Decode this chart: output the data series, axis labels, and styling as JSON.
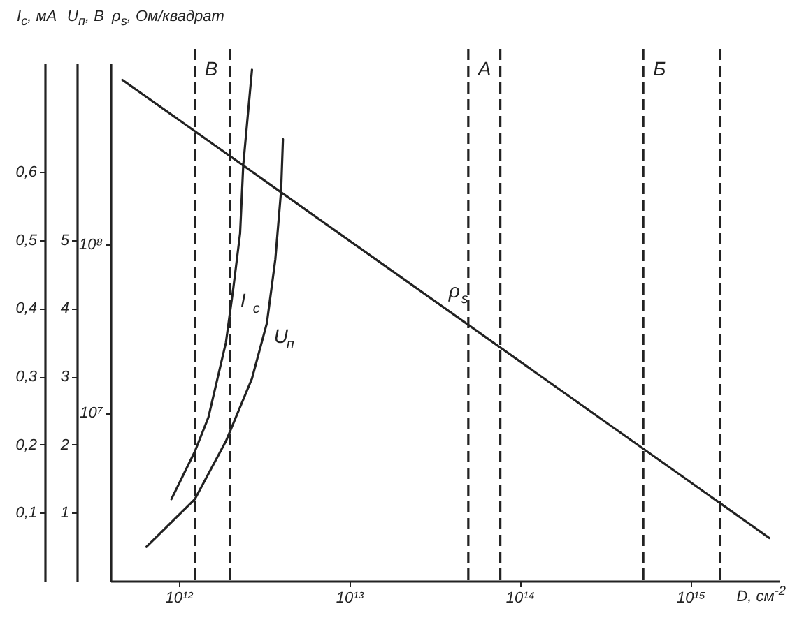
{
  "chart_data": {
    "type": "line",
    "xlabel": "D, см$^{-2}$",
    "ylabel": "ρ$_{s}$, Ом/квадрат",
    "y2label": "I$_{c}$, мА",
    "y3label": "U$_{п}$, В",
    "log": "xy",
    "xlim": [
      400000000000.0,
      3300000000000000.0
    ],
    "xticks": [
      {
        "value": 1000000000000.0,
        "label": "10¹²"
      },
      {
        "value": 10000000000000.0,
        "label": "10¹³"
      },
      {
        "value": 100000000000000.0,
        "label": "10¹⁴"
      },
      {
        "value": 1000000000000000.0,
        "label": "10¹⁵"
      }
    ],
    "ylim": [
      1000000.0,
      1200000000.0
    ],
    "yticks": [
      {
        "value": 10000000.0,
        "label": "10⁷"
      },
      {
        "value": 100000000.0,
        "label": "10⁸"
      }
    ],
    "y2lim": [
      0,
      0.76
    ],
    "y2ticks": [
      {
        "value": 0.1,
        "label": "0,1"
      },
      {
        "value": 0.2,
        "label": "0,2"
      },
      {
        "value": 0.3,
        "label": "0,3"
      },
      {
        "value": 0.4,
        "label": "0,4"
      },
      {
        "value": 0.5,
        "label": "0,5"
      },
      {
        "value": 0.6,
        "label": "0,6"
      }
    ],
    "y3lim": [
      0,
      7.6
    ],
    "y3ticks": [
      1,
      2,
      3,
      4,
      5
    ],
    "series": [
      {
        "name": "I$_{c}$",
        "color": "#222222",
        "axis": "y2",
        "x": [
          910000000000.0,
          1250000000000.0,
          1500000000000.0,
          1900000000000.0,
          2100000000000.0,
          2300000000000.0,
          2400000000000.0,
          2700000000000.0
        ],
        "values": [
          0.12,
          0.19,
          0.24,
          0.35,
          0.43,
          0.51,
          0.61,
          0.75
        ]
      },
      {
        "name": "U$_{п}$",
        "color": "#222222",
        "axis": "y3",
        "x": [
          650000000000.0,
          1250000000000.0,
          1900000000000.0,
          2700000000000.0,
          3300000000000.0,
          3700000000000.0,
          4000000000000.0,
          4100000000000.0
        ],
        "values": [
          0.5,
          1.2,
          2.05,
          2.97,
          3.78,
          4.72,
          5.73,
          6.48
        ]
      },
      {
        "name": "ρ$_{s}$",
        "color": "#222222",
        "axis": "y",
        "x": [
          470000000000.0,
          2900000000000000.0
        ],
        "values": [
          950000000.0,
          1800000.0
        ]
      }
    ],
    "ref_lines": [
      {
        "axis": "x",
        "value": 1250000000000.0,
        "label": "В",
        "color": "#222222",
        "line_style": "dashed"
      },
      {
        "axis": "x",
        "value": 2000000000000.0,
        "label": null,
        "color": "#222222",
        "line_style": "dashed"
      },
      {
        "axis": "x",
        "value": 50000000000000.0,
        "label": "А",
        "color": "#222222",
        "line_style": "dashed"
      },
      {
        "axis": "x",
        "value": 77000000000000.0,
        "label": null,
        "color": "#222222",
        "line_style": "dashed"
      },
      {
        "axis": "x",
        "value": 530000000000000.0,
        "label": "Б",
        "color": "#222222",
        "line_style": "dashed"
      },
      {
        "axis": "x",
        "value": 1500000000000000.0,
        "label": null,
        "color": "#222222",
        "line_style": "dashed"
      }
    ],
    "grid": false
  }
}
